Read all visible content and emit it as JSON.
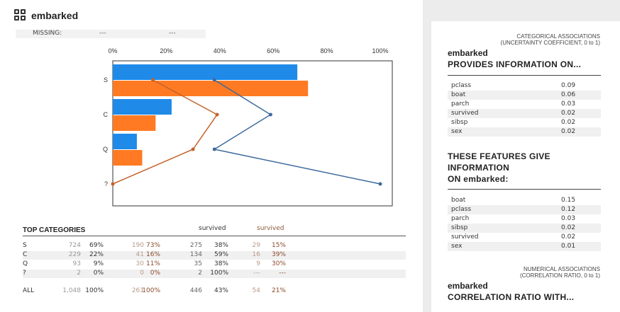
{
  "title": "embarked",
  "missing": {
    "label": "MISSING:",
    "v1": "---",
    "v2": "---"
  },
  "colors": {
    "blue": "#1f8ae8",
    "orange": "#ff7a22",
    "blue_line": "#3d6a9c",
    "orange_line": "#c4622a"
  },
  "chart_data": {
    "type": "bar",
    "orientation": "horizontal",
    "categories": [
      "S",
      "C",
      "Q",
      "?"
    ],
    "x_ticks": [
      "0%",
      "20%",
      "40%",
      "60%",
      "80%",
      "100%"
    ],
    "xlim": [
      0,
      100
    ],
    "bar_series": [
      {
        "values": [
          69,
          22,
          9,
          0
        ],
        "color": "#1f8ae8"
      },
      {
        "values": [
          73,
          16,
          11,
          0
        ],
        "color": "#ff7a22"
      }
    ],
    "line_series": [
      {
        "values": [
          38,
          59,
          38,
          100
        ],
        "color": "#3d6a9c"
      },
      {
        "values": [
          15,
          39,
          30,
          0
        ],
        "color": "#c4622a"
      }
    ]
  },
  "top_categories": {
    "title": "TOP CATEGORIES",
    "survived_label_1": "survived",
    "survived_label_2": "survived",
    "rows": [
      {
        "label": "S",
        "n1": "724",
        "p1": "69%",
        "n2": "190",
        "p2": "73%",
        "n3": "275",
        "p3": "38%",
        "n4": "29",
        "p4": "15%"
      },
      {
        "label": "C",
        "n1": "229",
        "p1": "22%",
        "n2": "41",
        "p2": "16%",
        "n3": "134",
        "p3": "59%",
        "n4": "16",
        "p4": "39%"
      },
      {
        "label": "Q",
        "n1": "93",
        "p1": "9%",
        "n2": "30",
        "p2": "11%",
        "n3": "35",
        "p3": "38%",
        "n4": "9",
        "p4": "30%"
      },
      {
        "label": "?",
        "n1": "2",
        "p1": "0%",
        "n2": "0",
        "p2": "0%",
        "n3": "2",
        "p3": "100%",
        "n4": "---",
        "p4": "---"
      }
    ],
    "all": {
      "label": "ALL",
      "n1": "1,048",
      "p1": "100%",
      "n2": "261",
      "p2": "100%",
      "n3": "446",
      "p3": "43%",
      "n4": "54",
      "p4": "21%"
    }
  },
  "categorical": {
    "heading_line1": "CATEGORICAL ASSOCIATIONS",
    "heading_line2": "(UNCERTAINTY COEFFICIENT, 0 to 1)",
    "name": "embarked",
    "provides_title": "PROVIDES INFORMATION ON...",
    "provides": [
      {
        "k": "pclass",
        "v": "0.09"
      },
      {
        "k": "boat",
        "v": "0.06"
      },
      {
        "k": "parch",
        "v": "0.03"
      },
      {
        "k": "survived",
        "v": "0.02"
      },
      {
        "k": "sibsp",
        "v": "0.02"
      },
      {
        "k": "sex",
        "v": "0.02"
      }
    ],
    "give_title_l1": "THESE FEATURES GIVE",
    "give_title_l2": "INFORMATION",
    "give_title_l3": "ON embarked:",
    "give": [
      {
        "k": "boat",
        "v": "0.15"
      },
      {
        "k": "pclass",
        "v": "0.12"
      },
      {
        "k": "parch",
        "v": "0.03"
      },
      {
        "k": "sibsp",
        "v": "0.02"
      },
      {
        "k": "survived",
        "v": "0.02"
      },
      {
        "k": "sex",
        "v": "0.01"
      }
    ]
  },
  "numerical": {
    "heading_line1": "NUMERICAL ASSOCIATIONS",
    "heading_line2": "(CORRELATION RATIO, 0 to 1)",
    "name": "embarked",
    "title": "CORRELATION RATIO WITH..."
  }
}
